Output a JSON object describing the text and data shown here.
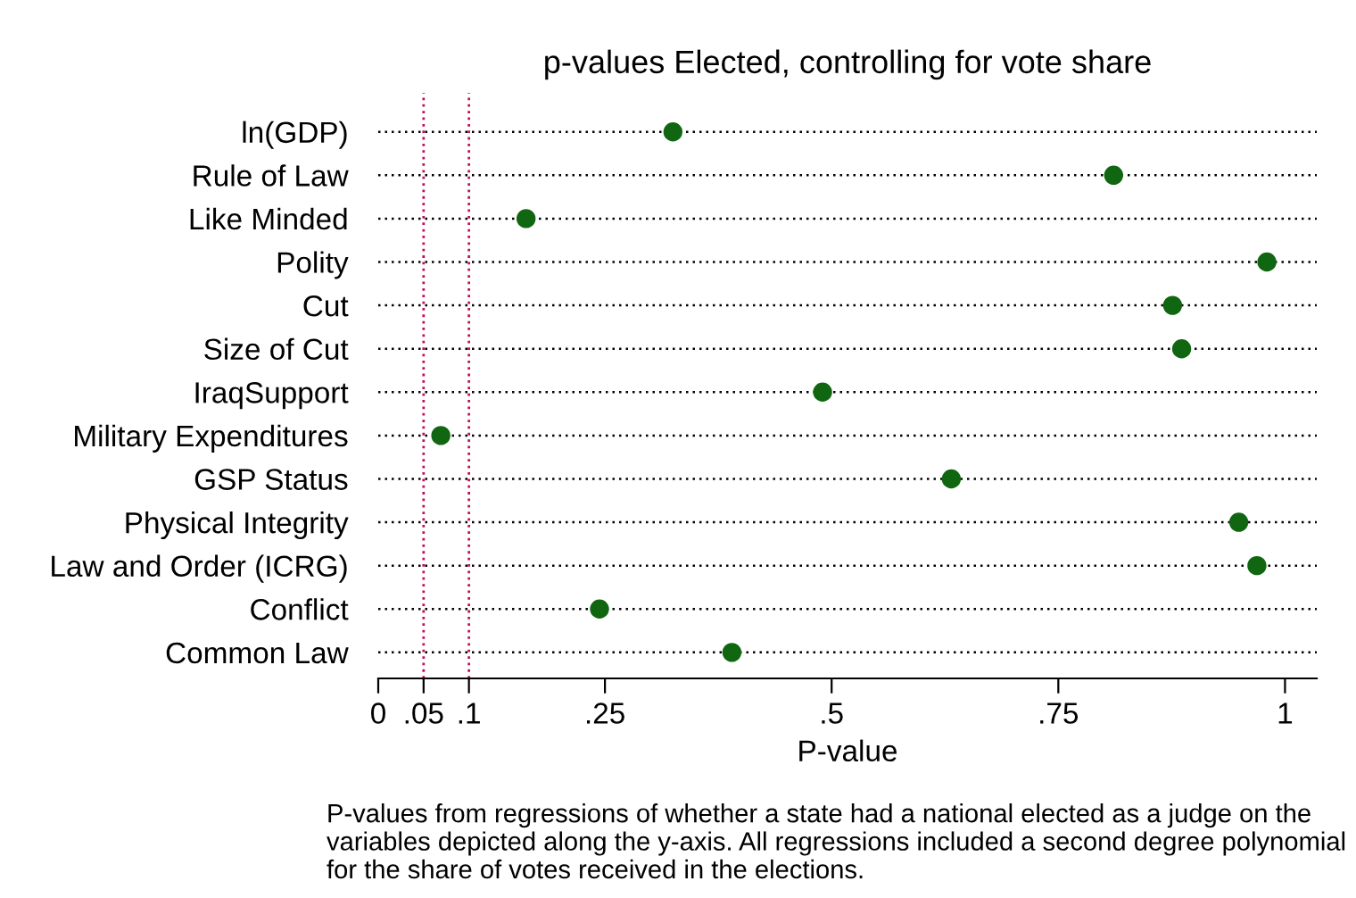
{
  "chart_data": {
    "type": "scatter",
    "orientation": "horizontal",
    "title": "p-values Elected, controlling for vote share",
    "xlabel": "P-value",
    "categories": [
      "ln(GDP)",
      "Rule of Law",
      "Like Minded",
      "Polity",
      "Cut",
      "Size of Cut",
      "IraqSupport",
      "Military Expenditures",
      "GSP Status",
      "Physical Integrity",
      "Law and Order (ICRG)",
      "Conflict",
      "Common Law"
    ],
    "series": [
      {
        "color": "#116611",
        "values": [
          0.325,
          0.811,
          0.163,
          0.98,
          0.876,
          0.886,
          0.49,
          0.069,
          0.632,
          0.949,
          0.969,
          0.244,
          0.39
        ]
      }
    ],
    "xlim": [
      0,
      1.035
    ],
    "xticks": [
      0,
      {
        "value": 0.05,
        "label": ".05"
      },
      {
        "value": 0.1,
        "label": ".1"
      },
      {
        "value": 0.25,
        "label": ".25"
      },
      {
        "value": 0.5,
        "label": ".5"
      },
      {
        "value": 0.75,
        "label": ".75"
      },
      1
    ],
    "ref_lines": [
      {
        "axis": "x",
        "value": 0.05,
        "color": "#c0105a",
        "line_style": "dotted"
      },
      {
        "axis": "x",
        "value": 0.1,
        "color": "#c0105a",
        "line_style": "dotted"
      }
    ],
    "grid": "y",
    "marker": "circle",
    "legend": false,
    "annotations": [
      "P-values from regressions of whether a state had a national elected as a judge on the variables depicted along the y-axis. All regressions included a second degree polynomial for the share of votes received in the elections."
    ]
  }
}
